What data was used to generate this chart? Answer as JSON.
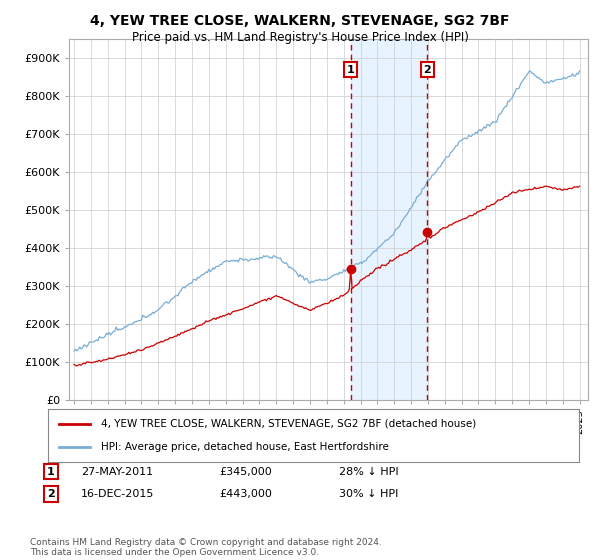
{
  "title": "4, YEW TREE CLOSE, WALKERN, STEVENAGE, SG2 7BF",
  "subtitle": "Price paid vs. HM Land Registry's House Price Index (HPI)",
  "ylim": [
    0,
    950000
  ],
  "yticks": [
    0,
    100000,
    200000,
    300000,
    400000,
    500000,
    600000,
    700000,
    800000,
    900000
  ],
  "ytick_labels": [
    "£0",
    "£100K",
    "£200K",
    "£300K",
    "£400K",
    "£500K",
    "£600K",
    "£700K",
    "£800K",
    "£900K"
  ],
  "legend_line1_full": "4, YEW TREE CLOSE, WALKERN, STEVENAGE, SG2 7BF (detached house)",
  "legend_line2": "HPI: Average price, detached house, East Hertfordshire",
  "sale1_date": "27-MAY-2011",
  "sale1_price": 345000,
  "sale1_pct": "28%",
  "sale2_date": "16-DEC-2015",
  "sale2_price": 443000,
  "sale2_pct": "30%",
  "footer": "Contains HM Land Registry data © Crown copyright and database right 2024.\nThis data is licensed under the Open Government Licence v3.0.",
  "hpi_color": "#7aadd4",
  "price_color": "#cc0000",
  "vline_color": "#cc0000",
  "shade_color": "#ddeeff",
  "bg_color": "#ffffff",
  "grid_color": "#cccccc",
  "sale1_x_year": 2011.42,
  "sale2_x_year": 2015.96,
  "xlim_left": 1994.7,
  "xlim_right": 2025.5
}
